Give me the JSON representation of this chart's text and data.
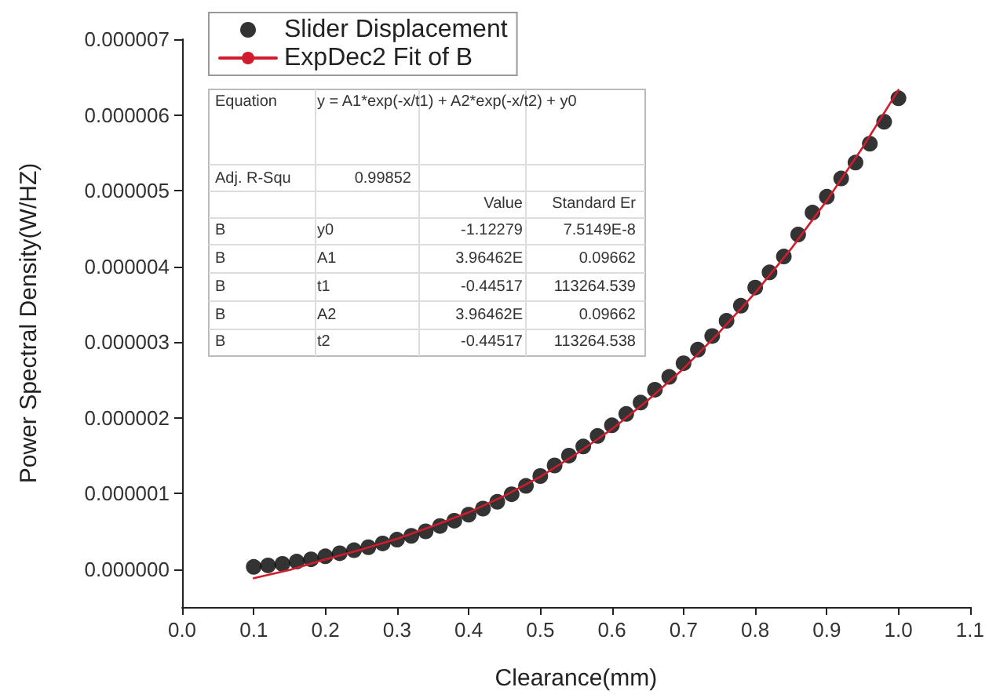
{
  "chart_data": {
    "type": "scatter",
    "xlabel": "Clearance(mm)",
    "ylabel": "Power Spectral Density(W/HZ)",
    "xlim": [
      0,
      1.1
    ],
    "xticks": [
      {
        "value": 0,
        "label": "0.0"
      },
      0.1,
      0.2,
      0.3,
      0.4,
      0.5,
      0.6,
      0.7,
      0.8,
      0.9,
      {
        "value": 1,
        "label": "1.0"
      },
      1.1
    ],
    "ylim": [
      -5e-07,
      7e-06
    ],
    "yticks": [
      {
        "value": 0,
        "label": "0.000000"
      },
      {
        "value": 1e-06,
        "label": "0.000001"
      },
      {
        "value": 2e-06,
        "label": "0.000002"
      },
      {
        "value": 3e-06,
        "label": "0.000003"
      },
      {
        "value": 4e-06,
        "label": "0.000004"
      },
      {
        "value": 5e-06,
        "label": "0.000005"
      },
      {
        "value": 6e-06,
        "label": "0.000006"
      },
      {
        "value": 7e-06,
        "label": "0.000007"
      }
    ],
    "x": [
      0.1,
      0.12,
      0.14,
      0.16,
      0.18,
      0.2,
      0.22,
      0.24,
      0.26,
      0.28,
      0.3,
      0.32,
      0.34,
      0.36,
      0.38,
      0.4,
      0.42,
      0.44,
      0.46,
      0.48,
      0.5,
      0.52,
      0.54,
      0.56,
      0.58,
      0.6,
      0.62,
      0.64,
      0.66,
      0.68,
      0.7,
      0.72,
      0.74,
      0.76,
      0.78,
      0.8,
      0.82,
      0.84,
      0.86,
      0.88,
      0.9,
      0.92,
      0.94,
      0.96,
      0.98,
      1.0
    ],
    "series": [
      {
        "name": "Slider Displacement",
        "color": "#000000",
        "marker": "circle",
        "values": [
          3e-08,
          5e-08,
          7e-08,
          1e-07,
          1.3e-07,
          1.7e-07,
          2.1e-07,
          2.5e-07,
          2.9e-07,
          3.4e-07,
          3.9e-07,
          4.4e-07,
          5e-07,
          5.7e-07,
          6.4e-07,
          7.2e-07,
          8e-07,
          8.9e-07,
          9.9e-07,
          1.1e-06,
          1.23e-06,
          1.37e-06,
          1.5e-06,
          1.62e-06,
          1.76e-06,
          1.9e-06,
          2.05e-06,
          2.2e-06,
          2.37e-06,
          2.54e-06,
          2.72e-06,
          2.9e-06,
          3.08e-06,
          3.28e-06,
          3.48e-06,
          3.72e-06,
          3.92e-06,
          4.13e-06,
          4.42e-06,
          4.71e-06,
          4.92e-06,
          5.16e-06,
          5.37e-06,
          5.62e-06,
          5.91e-06,
          6.22e-06
        ]
      },
      {
        "name": "ExpDec2 Fit of B",
        "type": "line",
        "color": "#d01c2c",
        "line_style": "solid",
        "marker": "none",
        "x": [
          0.1,
          0.15,
          0.2,
          0.25,
          0.3,
          0.35,
          0.4,
          0.45,
          0.5,
          0.55,
          0.6,
          0.65,
          0.7,
          0.75,
          0.8,
          0.85,
          0.9,
          0.95,
          1.0
        ],
        "values": [
          -1.2e-07,
          -1e-08,
          1.3e-07,
          2.6e-07,
          4e-07,
          5.7e-07,
          7.5e-07,
          9.7e-07,
          1.22e-06,
          1.52e-06,
          1.85e-06,
          2.23e-06,
          2.65e-06,
          3.13e-06,
          3.65e-06,
          4.23e-06,
          4.87e-06,
          5.57e-06,
          6.33e-06
        ]
      }
    ],
    "legend": "top left",
    "grid": false,
    "annotations": [
      "Equation",
      "y = A1*exp(-x/t1) + A2*exp(-x/t2) + y0",
      "Adj. R-Squ",
      "0.99852",
      "Value",
      "Standard Er",
      "B",
      "y0",
      "-1.12279",
      "7.5149E-8",
      "B",
      "A1",
      "3.96462E",
      "0.09662",
      "B",
      "t1",
      "-0.44517",
      "113264.539",
      "B",
      "A2",
      "3.96462E",
      "0.09662",
      "B",
      "t2",
      "-0.44517",
      "113264.538"
    ]
  }
}
